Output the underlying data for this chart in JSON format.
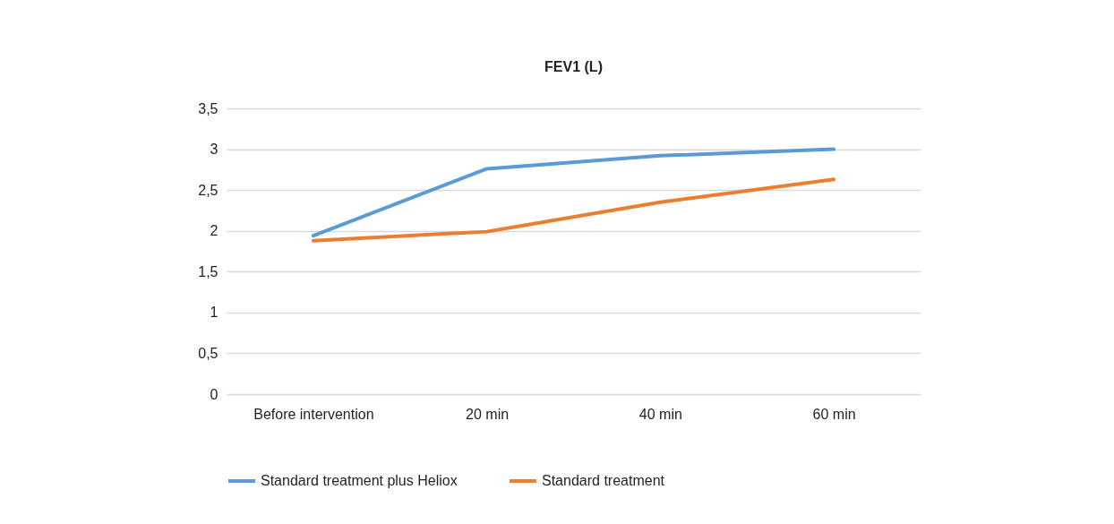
{
  "chart_data": {
    "type": "line",
    "title": "FEV1 (L)",
    "categories": [
      "Before intervention",
      "20 min",
      "40 min",
      "60 min"
    ],
    "series": [
      {
        "name": "Standard treatment plus Heliox",
        "color": "#5b9bd5",
        "values": [
          1.94,
          2.76,
          2.92,
          3.0
        ]
      },
      {
        "name": "Standard treatment",
        "color": "#ed7d31",
        "values": [
          1.88,
          1.99,
          2.35,
          2.63
        ]
      }
    ],
    "ylim": [
      0,
      3.5
    ],
    "yticks": [
      0,
      {
        "value": 0.5,
        "label": "0,5"
      },
      1,
      {
        "value": 1.5,
        "label": "1,5"
      },
      2,
      {
        "value": 2.5,
        "label": "2,5"
      },
      3,
      {
        "value": 3.5,
        "label": "3,5"
      }
    ],
    "grid": "y",
    "legend": "bottom",
    "marker": "none",
    "line_style": "solid"
  }
}
